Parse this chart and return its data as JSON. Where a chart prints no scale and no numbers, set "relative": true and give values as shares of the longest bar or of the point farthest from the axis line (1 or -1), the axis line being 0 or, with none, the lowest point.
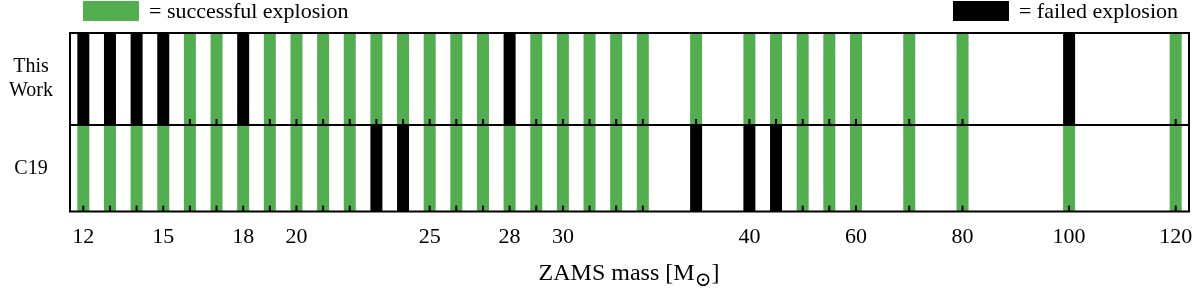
{
  "chart_data": [
    {
      "type": "bar",
      "relative": true,
      "ylabel": "This Work",
      "legend": "top",
      "tick_labels": false,
      "categories": [
        "12",
        null,
        null,
        "15",
        null,
        null,
        "18",
        null,
        "20",
        null,
        null,
        null,
        null,
        "25",
        null,
        null,
        "28",
        null,
        "30",
        null,
        null,
        null,
        null,
        null,
        null,
        "40",
        null,
        null,
        null,
        "60",
        null,
        null,
        null,
        "80",
        null,
        null,
        null,
        "100",
        null,
        null,
        null,
        "120"
      ],
      "series": [
        {
          "name": "= successful explosion",
          "color": "#52ae4f",
          "values": [
            null,
            null,
            null,
            null,
            1,
            1,
            null,
            1,
            1,
            1,
            1,
            1,
            1,
            1,
            1,
            1,
            null,
            1,
            1,
            1,
            1,
            1,
            null,
            1,
            null,
            1,
            1,
            1,
            1,
            1,
            null,
            1,
            null,
            1,
            null,
            null,
            null,
            null,
            null,
            null,
            null,
            1
          ]
        },
        {
          "name": "= failed explosion",
          "color": "#000000",
          "values": [
            1,
            1,
            1,
            1,
            null,
            null,
            1,
            null,
            null,
            null,
            null,
            null,
            null,
            null,
            null,
            null,
            1,
            null,
            null,
            null,
            null,
            null,
            null,
            null,
            null,
            null,
            null,
            null,
            null,
            null,
            null,
            null,
            null,
            null,
            null,
            null,
            null,
            1,
            null,
            null,
            null,
            null
          ]
        }
      ]
    },
    {
      "type": "bar",
      "relative": true,
      "ylabel": "C19",
      "tick_labels": "x",
      "xlabel": "ZAMS mass [M$_{⊙}$]",
      "categories": [
        "12",
        null,
        null,
        "15",
        null,
        null,
        "18",
        null,
        "20",
        null,
        null,
        null,
        null,
        "25",
        null,
        null,
        "28",
        null,
        "30",
        null,
        null,
        null,
        null,
        null,
        null,
        "40",
        null,
        null,
        null,
        "60",
        null,
        null,
        null,
        "80",
        null,
        null,
        null,
        "100",
        null,
        null,
        null,
        "120"
      ],
      "series": [
        {
          "color": "#52ae4f",
          "values": [
            1,
            1,
            1,
            1,
            1,
            1,
            1,
            1,
            1,
            1,
            1,
            null,
            null,
            1,
            1,
            1,
            1,
            1,
            1,
            1,
            1,
            1,
            null,
            null,
            null,
            null,
            null,
            1,
            1,
            1,
            null,
            1,
            null,
            1,
            null,
            null,
            null,
            1,
            null,
            null,
            null,
            1
          ]
        },
        {
          "color": "#000000",
          "values": [
            null,
            null,
            null,
            null,
            null,
            null,
            null,
            null,
            null,
            null,
            null,
            1,
            1,
            null,
            null,
            null,
            null,
            null,
            null,
            null,
            null,
            null,
            null,
            1,
            null,
            1,
            1,
            null,
            null,
            null,
            null,
            null,
            null,
            null,
            null,
            null,
            null,
            null,
            null,
            null,
            null,
            null
          ]
        }
      ]
    }
  ]
}
